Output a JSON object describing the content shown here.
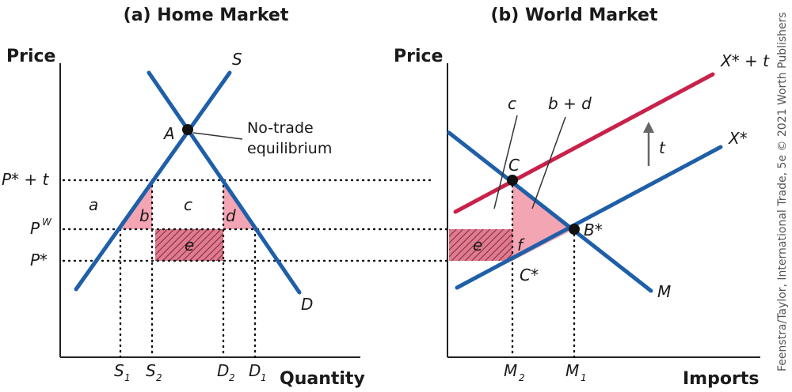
{
  "panel_a": {
    "title": "(a) Home Market",
    "y_axis": "Price",
    "x_axis": "Quantity",
    "curve_supply": "S",
    "curve_demand": "D",
    "point": "A",
    "annotation_line1": "No-trade",
    "annotation_line2": "equilibrium",
    "price_levels": [
      "P* + t",
      "P",
      "W",
      "P*"
    ],
    "quantity_labels": [
      "S",
      "1",
      "S",
      "2",
      "D",
      "2",
      "D",
      "1"
    ],
    "areas": [
      "a",
      "b",
      "c",
      "d",
      "e"
    ]
  },
  "panel_b": {
    "title": "(b) World Market",
    "y_axis": "Price",
    "x_axis": "Imports",
    "curve_x_plus_t": "X* + t",
    "curve_x": "X*",
    "curve_m": "M",
    "tariff_label": "t",
    "points": [
      "C",
      "B*",
      "C*"
    ],
    "areas": [
      "c",
      "b + d",
      "e",
      "f"
    ],
    "import_labels": [
      "M",
      "2",
      "M",
      "1"
    ]
  },
  "credit": "Feenstra/Taylor, International Trade, 5e © 2021 Worth Publishers",
  "colors": {
    "curve_blue": "#1f5fa8",
    "curve_red": "#c8224a",
    "shade_pink": "#f4a5b4"
  }
}
